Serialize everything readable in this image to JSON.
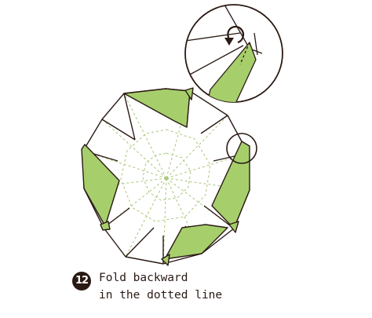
{
  "step": {
    "number": "12"
  },
  "instruction": {
    "line1": "Fold backward",
    "line2": "in the dotted line"
  },
  "colors": {
    "paper": "#ffffff",
    "flap_green": "#a6cf6c",
    "outline": "#2b1a14",
    "fold_line": "#a8c77a"
  },
  "icons": {
    "arrow": "fold-backward-arrow",
    "zoom": "zoom-circle"
  }
}
